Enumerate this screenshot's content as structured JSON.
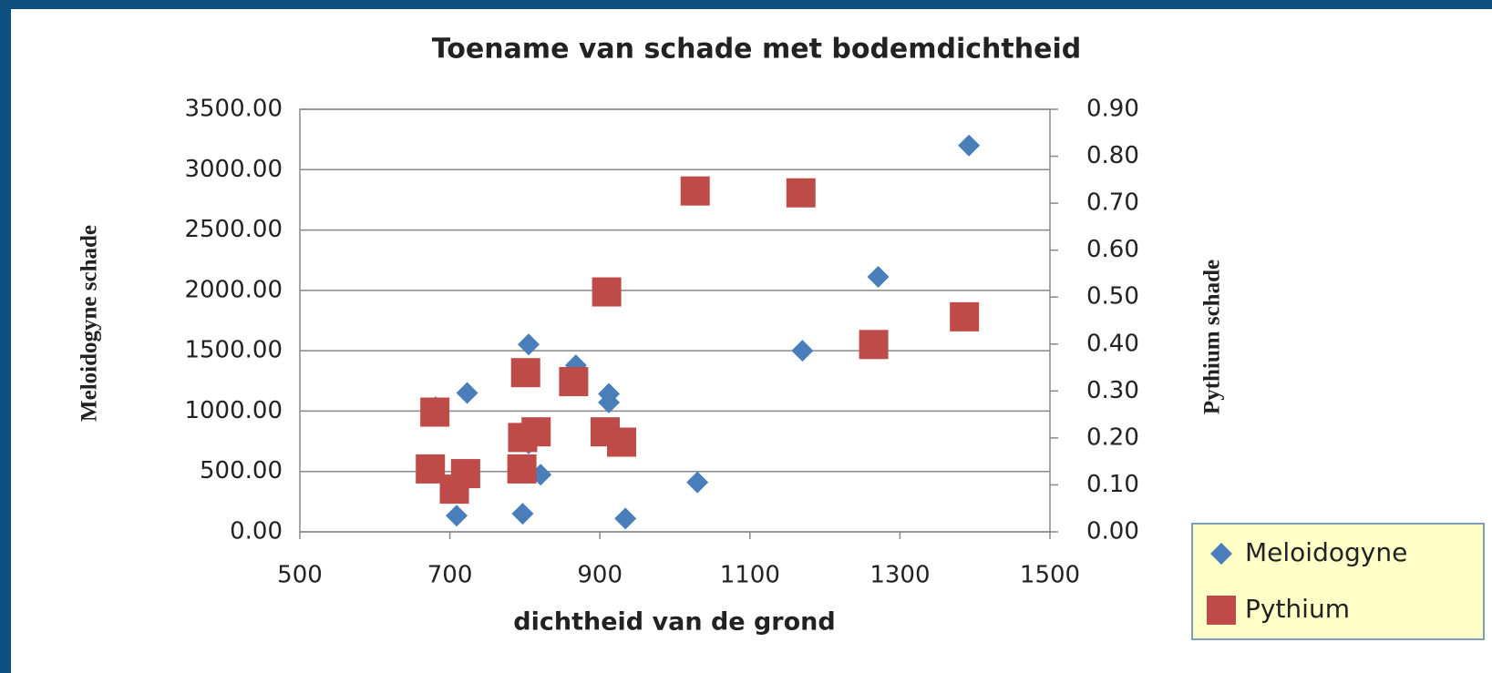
{
  "chart_data": {
    "type": "scatter",
    "title": "Toename van schade met bodemdichtheid",
    "xlabel": "dichtheid van de grond",
    "ylabel": "Meloidogyne schade",
    "y2label": "Pythium schade",
    "xlim": [
      500,
      1500
    ],
    "xticks": [
      500,
      700,
      900,
      1100,
      1300,
      1500
    ],
    "ylim": [
      0,
      3500
    ],
    "yticks": [
      {
        "value": 0,
        "label": "0.00"
      },
      {
        "value": 500,
        "label": "500.00"
      },
      {
        "value": 1000,
        "label": "1000.00"
      },
      {
        "value": 1500,
        "label": "1500.00"
      },
      {
        "value": 2000,
        "label": "2000.00"
      },
      {
        "value": 2500,
        "label": "2500.00"
      },
      {
        "value": 3000,
        "label": "3000.00"
      },
      {
        "value": 3500,
        "label": "3500.00"
      }
    ],
    "y2lim": [
      0,
      0.9
    ],
    "y2ticks": [
      {
        "value": 0,
        "label": "0.00"
      },
      {
        "value": 0.1,
        "label": "0.10"
      },
      {
        "value": 0.2,
        "label": "0.20"
      },
      {
        "value": 0.3,
        "label": "0.30"
      },
      {
        "value": 0.4,
        "label": "0.40"
      },
      {
        "value": 0.5,
        "label": "0.50"
      },
      {
        "value": 0.6,
        "label": "0.60"
      },
      {
        "value": 0.7,
        "label": "0.70"
      },
      {
        "value": 0.8,
        "label": "0.80"
      },
      {
        "value": 0.9,
        "label": "0.90"
      }
    ],
    "grid": true,
    "series": [
      {
        "name": "Meloidogyne",
        "color": "#4a7ebb",
        "marker": "diamond",
        "x": [
          1392,
          1271,
          1170,
          1030,
          934,
          805,
          868,
          912,
          912,
          723,
          681,
          709,
          797,
          821,
          805,
          674
        ],
        "values": [
          3200,
          2112,
          1500,
          410,
          110,
          1552,
          1379,
          1143,
          1072,
          1150,
          1032,
          134,
          150,
          473,
          733,
          552
        ]
      },
      {
        "name": "Pythium",
        "color": "#be4b48",
        "marker": "square",
        "axis": "y2",
        "x": [
          1027,
          1168,
          909,
          1386,
          1265,
          801,
          865,
          680,
          815,
          797,
          907,
          929,
          674,
          796,
          721,
          706
        ],
        "values": [
          0.726,
          0.722,
          0.511,
          0.458,
          0.399,
          0.339,
          0.32,
          0.255,
          0.213,
          0.201,
          0.213,
          0.191,
          0.134,
          0.134,
          0.124,
          0.091
        ]
      }
    ]
  }
}
